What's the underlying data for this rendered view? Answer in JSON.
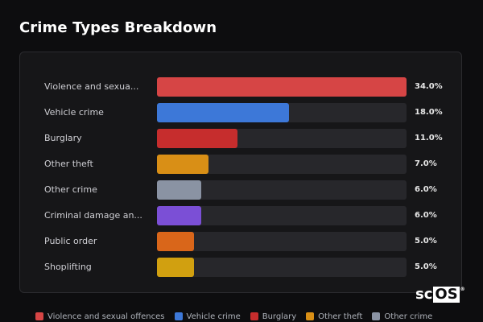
{
  "header": {
    "title": "Crime Types Breakdown"
  },
  "logo": {
    "left": "sc",
    "boxed": "OS",
    "mark": "®"
  },
  "chart_data": {
    "type": "bar",
    "orientation": "horizontal",
    "categories": [
      "Violence and sexua...",
      "Vehicle crime",
      "Burglary",
      "Other theft",
      "Other crime",
      "Criminal damage an...",
      "Public order",
      "Shoplifting"
    ],
    "values": [
      34.0,
      18.0,
      11.0,
      7.0,
      6.0,
      6.0,
      5.0,
      5.0
    ],
    "value_labels": [
      "34.0%",
      "18.0%",
      "11.0%",
      "7.0%",
      "6.0%",
      "6.0%",
      "5.0%",
      "5.0%"
    ],
    "colors": [
      "#d64545",
      "#3d78d8",
      "#c62d2d",
      "#d98f16",
      "#8a93a3",
      "#7b4fd6",
      "#d9661a",
      "#d1a010"
    ],
    "xlim": [
      0,
      34
    ],
    "legend": {
      "placement": "bottom",
      "entries": [
        {
          "name": "Violence and sexual offences",
          "color": "#d64545"
        },
        {
          "name": "Vehicle crime",
          "color": "#3d78d8"
        },
        {
          "name": "Burglary",
          "color": "#c62d2d"
        },
        {
          "name": "Other theft",
          "color": "#d98f16"
        },
        {
          "name": "Other crime",
          "color": "#8a93a3"
        }
      ]
    }
  }
}
